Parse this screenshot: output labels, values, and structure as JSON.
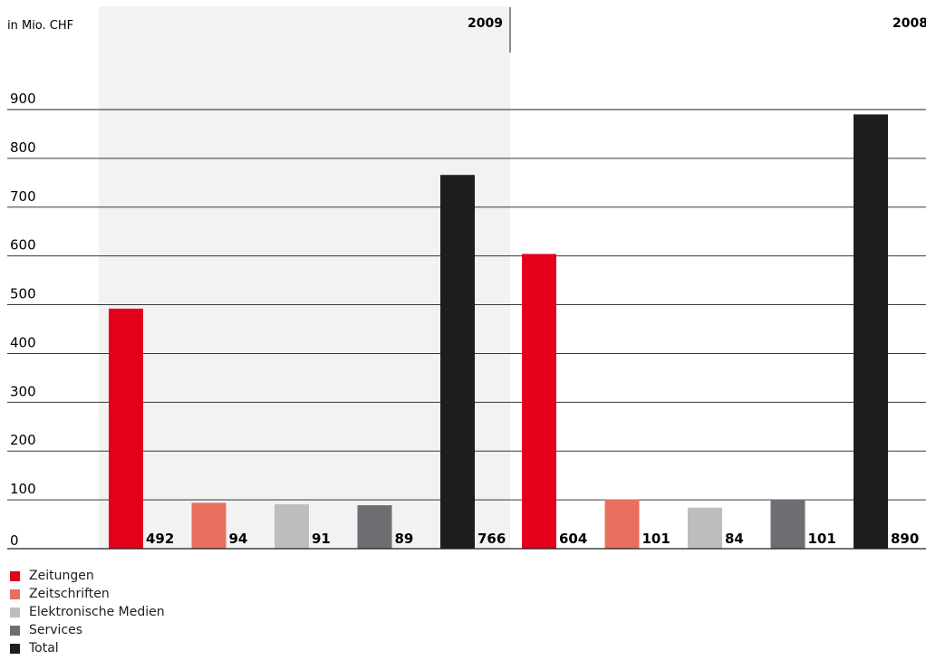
{
  "chart_data": {
    "type": "bar",
    "unit_label": "in Mio. CHF",
    "groups": [
      "2009",
      "2008"
    ],
    "series": [
      {
        "name": "Zeitungen",
        "color": "#e2001a",
        "values": [
          492,
          604
        ]
      },
      {
        "name": "Zeitschriften",
        "color": "#e86f5e",
        "values": [
          94,
          101
        ]
      },
      {
        "name": "Elektronische Medien",
        "color": "#bdbdbe",
        "values": [
          91,
          84
        ]
      },
      {
        "name": "Services",
        "color": "#6e6d72",
        "values": [
          89,
          101
        ]
      },
      {
        "name": "Total",
        "color": "#1d1d1f",
        "values": [
          766,
          890
        ]
      }
    ],
    "y_ticks": [
      0,
      100,
      200,
      300,
      400,
      500,
      600,
      700,
      800,
      900
    ],
    "ylim": [
      0,
      900
    ],
    "grid": true,
    "highlight_group": "2009",
    "highlight_color": "#f2f2f2",
    "legend_position": "bottom-left"
  }
}
